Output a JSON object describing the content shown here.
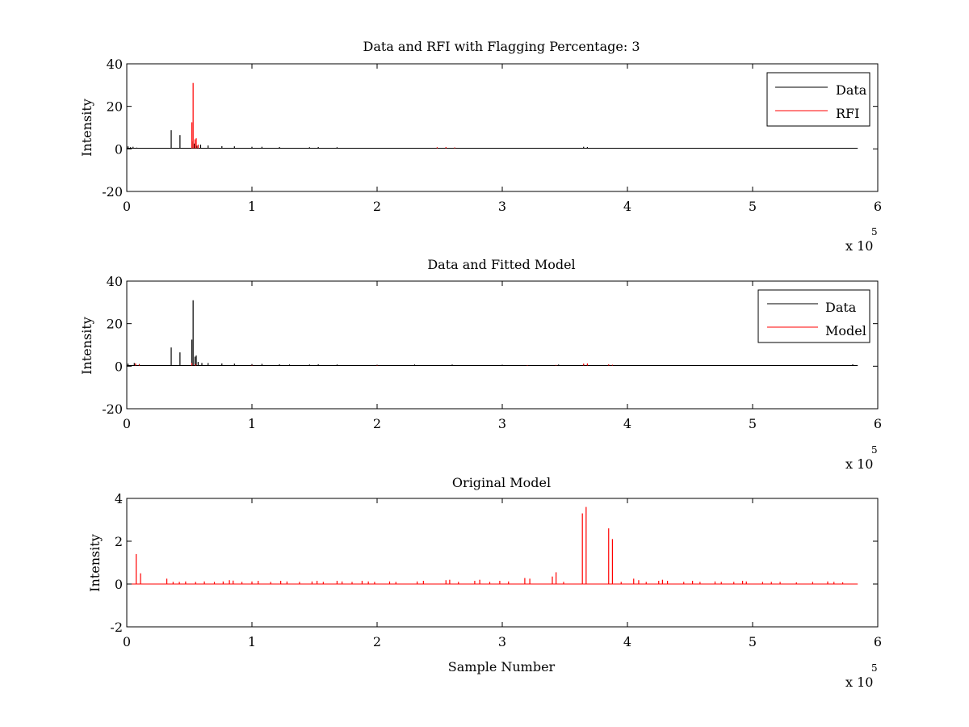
{
  "colors": {
    "data": "#000000",
    "rfi": "#ff0000",
    "model": "#ff0000"
  },
  "chart_data": [
    {
      "type": "line",
      "title": "Data and RFI with Flagging Percentage: 3",
      "xlabel": "",
      "ylabel": "Intensity",
      "xlim": [
        0,
        600000
      ],
      "ylim": [
        -20,
        40
      ],
      "x_ticks": [
        0,
        100000,
        200000,
        300000,
        400000,
        500000,
        600000
      ],
      "x_tick_labels": [
        "0",
        "1",
        "2",
        "3",
        "4",
        "5",
        "6"
      ],
      "y_ticks": [
        -20,
        0,
        20,
        40
      ],
      "y_tick_labels": [
        "-20",
        "0",
        "20",
        "40"
      ],
      "x_exponent": {
        "base": "x 10",
        "power": "5"
      },
      "legend_position": "top-right",
      "baseline": 0.3,
      "x_end": 584000,
      "series": [
        {
          "name": "Data",
          "color": "#000000",
          "spikes": [
            [
              1000,
              1.2
            ],
            [
              3000,
              0.8
            ],
            [
              5000,
              1.0
            ],
            [
              8000,
              0.6
            ],
            [
              35500,
              8.8
            ],
            [
              42500,
              6.5
            ],
            [
              52000,
              3.5
            ],
            [
              54000,
              2.5
            ],
            [
              56000,
              1.5
            ],
            [
              59000,
              2.0
            ],
            [
              65000,
              1.6
            ],
            [
              76000,
              1.3
            ],
            [
              86000,
              1.2
            ],
            [
              100000,
              1.0
            ],
            [
              108000,
              1.0
            ],
            [
              122000,
              0.9
            ],
            [
              146000,
              0.8
            ],
            [
              153000,
              0.9
            ],
            [
              168000,
              0.8
            ],
            [
              365000,
              1.0
            ],
            [
              368000,
              0.9
            ]
          ]
        },
        {
          "name": "RFI",
          "color": "#ff0000",
          "spikes": [
            [
              52000,
              12.5
            ],
            [
              53000,
              31.0
            ],
            [
              54500,
              4.5
            ],
            [
              55500,
              5.0
            ],
            [
              57000,
              2.0
            ],
            [
              248000,
              0.8
            ],
            [
              255000,
              0.9
            ],
            [
              262000,
              0.7
            ]
          ]
        }
      ]
    },
    {
      "type": "line",
      "title": "Data and Fitted Model",
      "xlabel": "",
      "ylabel": "Intensity",
      "xlim": [
        0,
        600000
      ],
      "ylim": [
        -20,
        40
      ],
      "x_ticks": [
        0,
        100000,
        200000,
        300000,
        400000,
        500000,
        600000
      ],
      "x_tick_labels": [
        "0",
        "1",
        "2",
        "3",
        "4",
        "5",
        "6"
      ],
      "y_ticks": [
        -20,
        0,
        20,
        40
      ],
      "y_tick_labels": [
        "-20",
        "0",
        "20",
        "40"
      ],
      "x_exponent": {
        "base": "x 10",
        "power": "5"
      },
      "legend_position": "top-right",
      "baseline": 0.3,
      "x_end": 584000,
      "series": [
        {
          "name": "Data",
          "color": "#000000",
          "spikes": [
            [
              1000,
              1.2
            ],
            [
              6000,
              1.5
            ],
            [
              10000,
              1.0
            ],
            [
              35500,
              8.8
            ],
            [
              42500,
              6.5
            ],
            [
              52000,
              12.5
            ],
            [
              53000,
              31.0
            ],
            [
              54500,
              4.5
            ],
            [
              55500,
              5.0
            ],
            [
              57000,
              2.0
            ],
            [
              60000,
              1.5
            ],
            [
              65000,
              1.5
            ],
            [
              76000,
              1.3
            ],
            [
              86000,
              1.2
            ],
            [
              100000,
              1.0
            ],
            [
              108000,
              1.1
            ],
            [
              122000,
              0.9
            ],
            [
              130000,
              0.8
            ],
            [
              146000,
              0.8
            ],
            [
              153000,
              0.9
            ],
            [
              168000,
              0.8
            ],
            [
              200000,
              0.7
            ],
            [
              230000,
              0.8
            ],
            [
              260000,
              0.8
            ],
            [
              300000,
              0.7
            ],
            [
              345000,
              0.8
            ],
            [
              365000,
              1.0
            ],
            [
              368000,
              0.9
            ],
            [
              385000,
              0.8
            ],
            [
              580000,
              0.9
            ]
          ]
        },
        {
          "name": "Model",
          "color": "#ff0000",
          "spikes": [
            [
              7000,
              1.3
            ],
            [
              10000,
              0.8
            ],
            [
              52000,
              1.5
            ],
            [
              55000,
              1.0
            ],
            [
              100000,
              0.5
            ],
            [
              200000,
              0.5
            ],
            [
              320000,
              0.5
            ],
            [
              343000,
              0.6
            ],
            [
              365000,
              1.2
            ],
            [
              368000,
              1.3
            ],
            [
              385000,
              0.8
            ],
            [
              388000,
              0.7
            ]
          ]
        }
      ]
    },
    {
      "type": "line",
      "title": "Original Model",
      "xlabel": "Sample Number",
      "ylabel": "Intensity",
      "xlim": [
        0,
        600000
      ],
      "ylim": [
        -2,
        4
      ],
      "x_ticks": [
        0,
        100000,
        200000,
        300000,
        400000,
        500000,
        600000
      ],
      "x_tick_labels": [
        "0",
        "1",
        "2",
        "3",
        "4",
        "5",
        "6"
      ],
      "y_ticks": [
        -2,
        0,
        2,
        4
      ],
      "y_tick_labels": [
        "-2",
        "0",
        "2",
        "4"
      ],
      "x_exponent": {
        "base": "x 10",
        "power": "5"
      },
      "legend_position": "none",
      "baseline": 0.0,
      "x_end": 584000,
      "series": [
        {
          "color": "#ff0000",
          "spikes": [
            [
              7500,
              1.4
            ],
            [
              11000,
              0.5
            ],
            [
              32000,
              0.25
            ],
            [
              37000,
              0.1
            ],
            [
              42000,
              0.1
            ],
            [
              47000,
              0.12
            ],
            [
              55000,
              0.1
            ],
            [
              62000,
              0.12
            ],
            [
              70000,
              0.1
            ],
            [
              77000,
              0.12
            ],
            [
              82000,
              0.18
            ],
            [
              85000,
              0.16
            ],
            [
              92000,
              0.1
            ],
            [
              100000,
              0.12
            ],
            [
              105000,
              0.15
            ],
            [
              115000,
              0.1
            ],
            [
              123000,
              0.15
            ],
            [
              128000,
              0.12
            ],
            [
              138000,
              0.1
            ],
            [
              148000,
              0.12
            ],
            [
              152000,
              0.15
            ],
            [
              157000,
              0.1
            ],
            [
              168000,
              0.15
            ],
            [
              172000,
              0.12
            ],
            [
              180000,
              0.1
            ],
            [
              188000,
              0.15
            ],
            [
              193000,
              0.12
            ],
            [
              198000,
              0.1
            ],
            [
              210000,
              0.12
            ],
            [
              215000,
              0.1
            ],
            [
              232000,
              0.12
            ],
            [
              237000,
              0.15
            ],
            [
              255000,
              0.18
            ],
            [
              258000,
              0.2
            ],
            [
              265000,
              0.1
            ],
            [
              278000,
              0.15
            ],
            [
              282000,
              0.2
            ],
            [
              290000,
              0.1
            ],
            [
              298000,
              0.15
            ],
            [
              305000,
              0.12
            ],
            [
              318000,
              0.28
            ],
            [
              322000,
              0.25
            ],
            [
              340000,
              0.35
            ],
            [
              343000,
              0.55
            ],
            [
              349000,
              0.1
            ],
            [
              364000,
              3.3
            ],
            [
              367000,
              3.6
            ],
            [
              385000,
              2.6
            ],
            [
              388000,
              2.1
            ],
            [
              395000,
              0.1
            ],
            [
              405000,
              0.25
            ],
            [
              409000,
              0.18
            ],
            [
              415000,
              0.1
            ],
            [
              425000,
              0.15
            ],
            [
              428000,
              0.2
            ],
            [
              432000,
              0.15
            ],
            [
              445000,
              0.1
            ],
            [
              452000,
              0.15
            ],
            [
              458000,
              0.1
            ],
            [
              470000,
              0.12
            ],
            [
              475000,
              0.1
            ],
            [
              485000,
              0.1
            ],
            [
              492000,
              0.15
            ],
            [
              495000,
              0.12
            ],
            [
              508000,
              0.1
            ],
            [
              515000,
              0.1
            ],
            [
              522000,
              0.1
            ],
            [
              535000,
              0.08
            ],
            [
              548000,
              0.1
            ],
            [
              560000,
              0.12
            ],
            [
              565000,
              0.1
            ],
            [
              572000,
              0.08
            ]
          ]
        }
      ]
    }
  ]
}
